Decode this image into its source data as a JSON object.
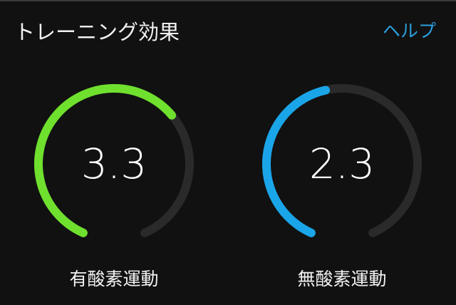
{
  "header": {
    "title": "トレーニング効果",
    "help_label": "ヘルプ"
  },
  "gauges": [
    {
      "label": "有酸素運動",
      "value": "3.3",
      "fraction": 0.66,
      "max": 5,
      "color": "#6fe02e"
    },
    {
      "label": "無酸素運動",
      "value": "2.3",
      "fraction": 0.46,
      "max": 5,
      "color": "#1aa5e8"
    }
  ],
  "track_color": "#2a2a2a"
}
